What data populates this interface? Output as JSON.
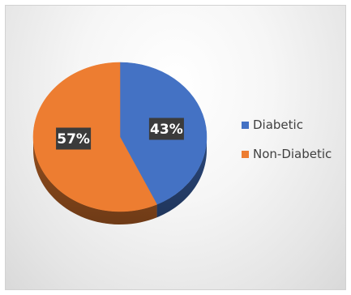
{
  "chart_data": {
    "type": "pie",
    "style": "3d",
    "categories": [
      "Diabetic",
      "Non-Diabetic"
    ],
    "values": [
      43,
      57
    ],
    "data_labels": [
      "43%",
      "57%"
    ],
    "colors": [
      "#4472c4",
      "#ed7d31"
    ],
    "legend": {
      "placement": "right",
      "entries": [
        "Diabetic",
        "Non-Diabetic"
      ]
    }
  }
}
